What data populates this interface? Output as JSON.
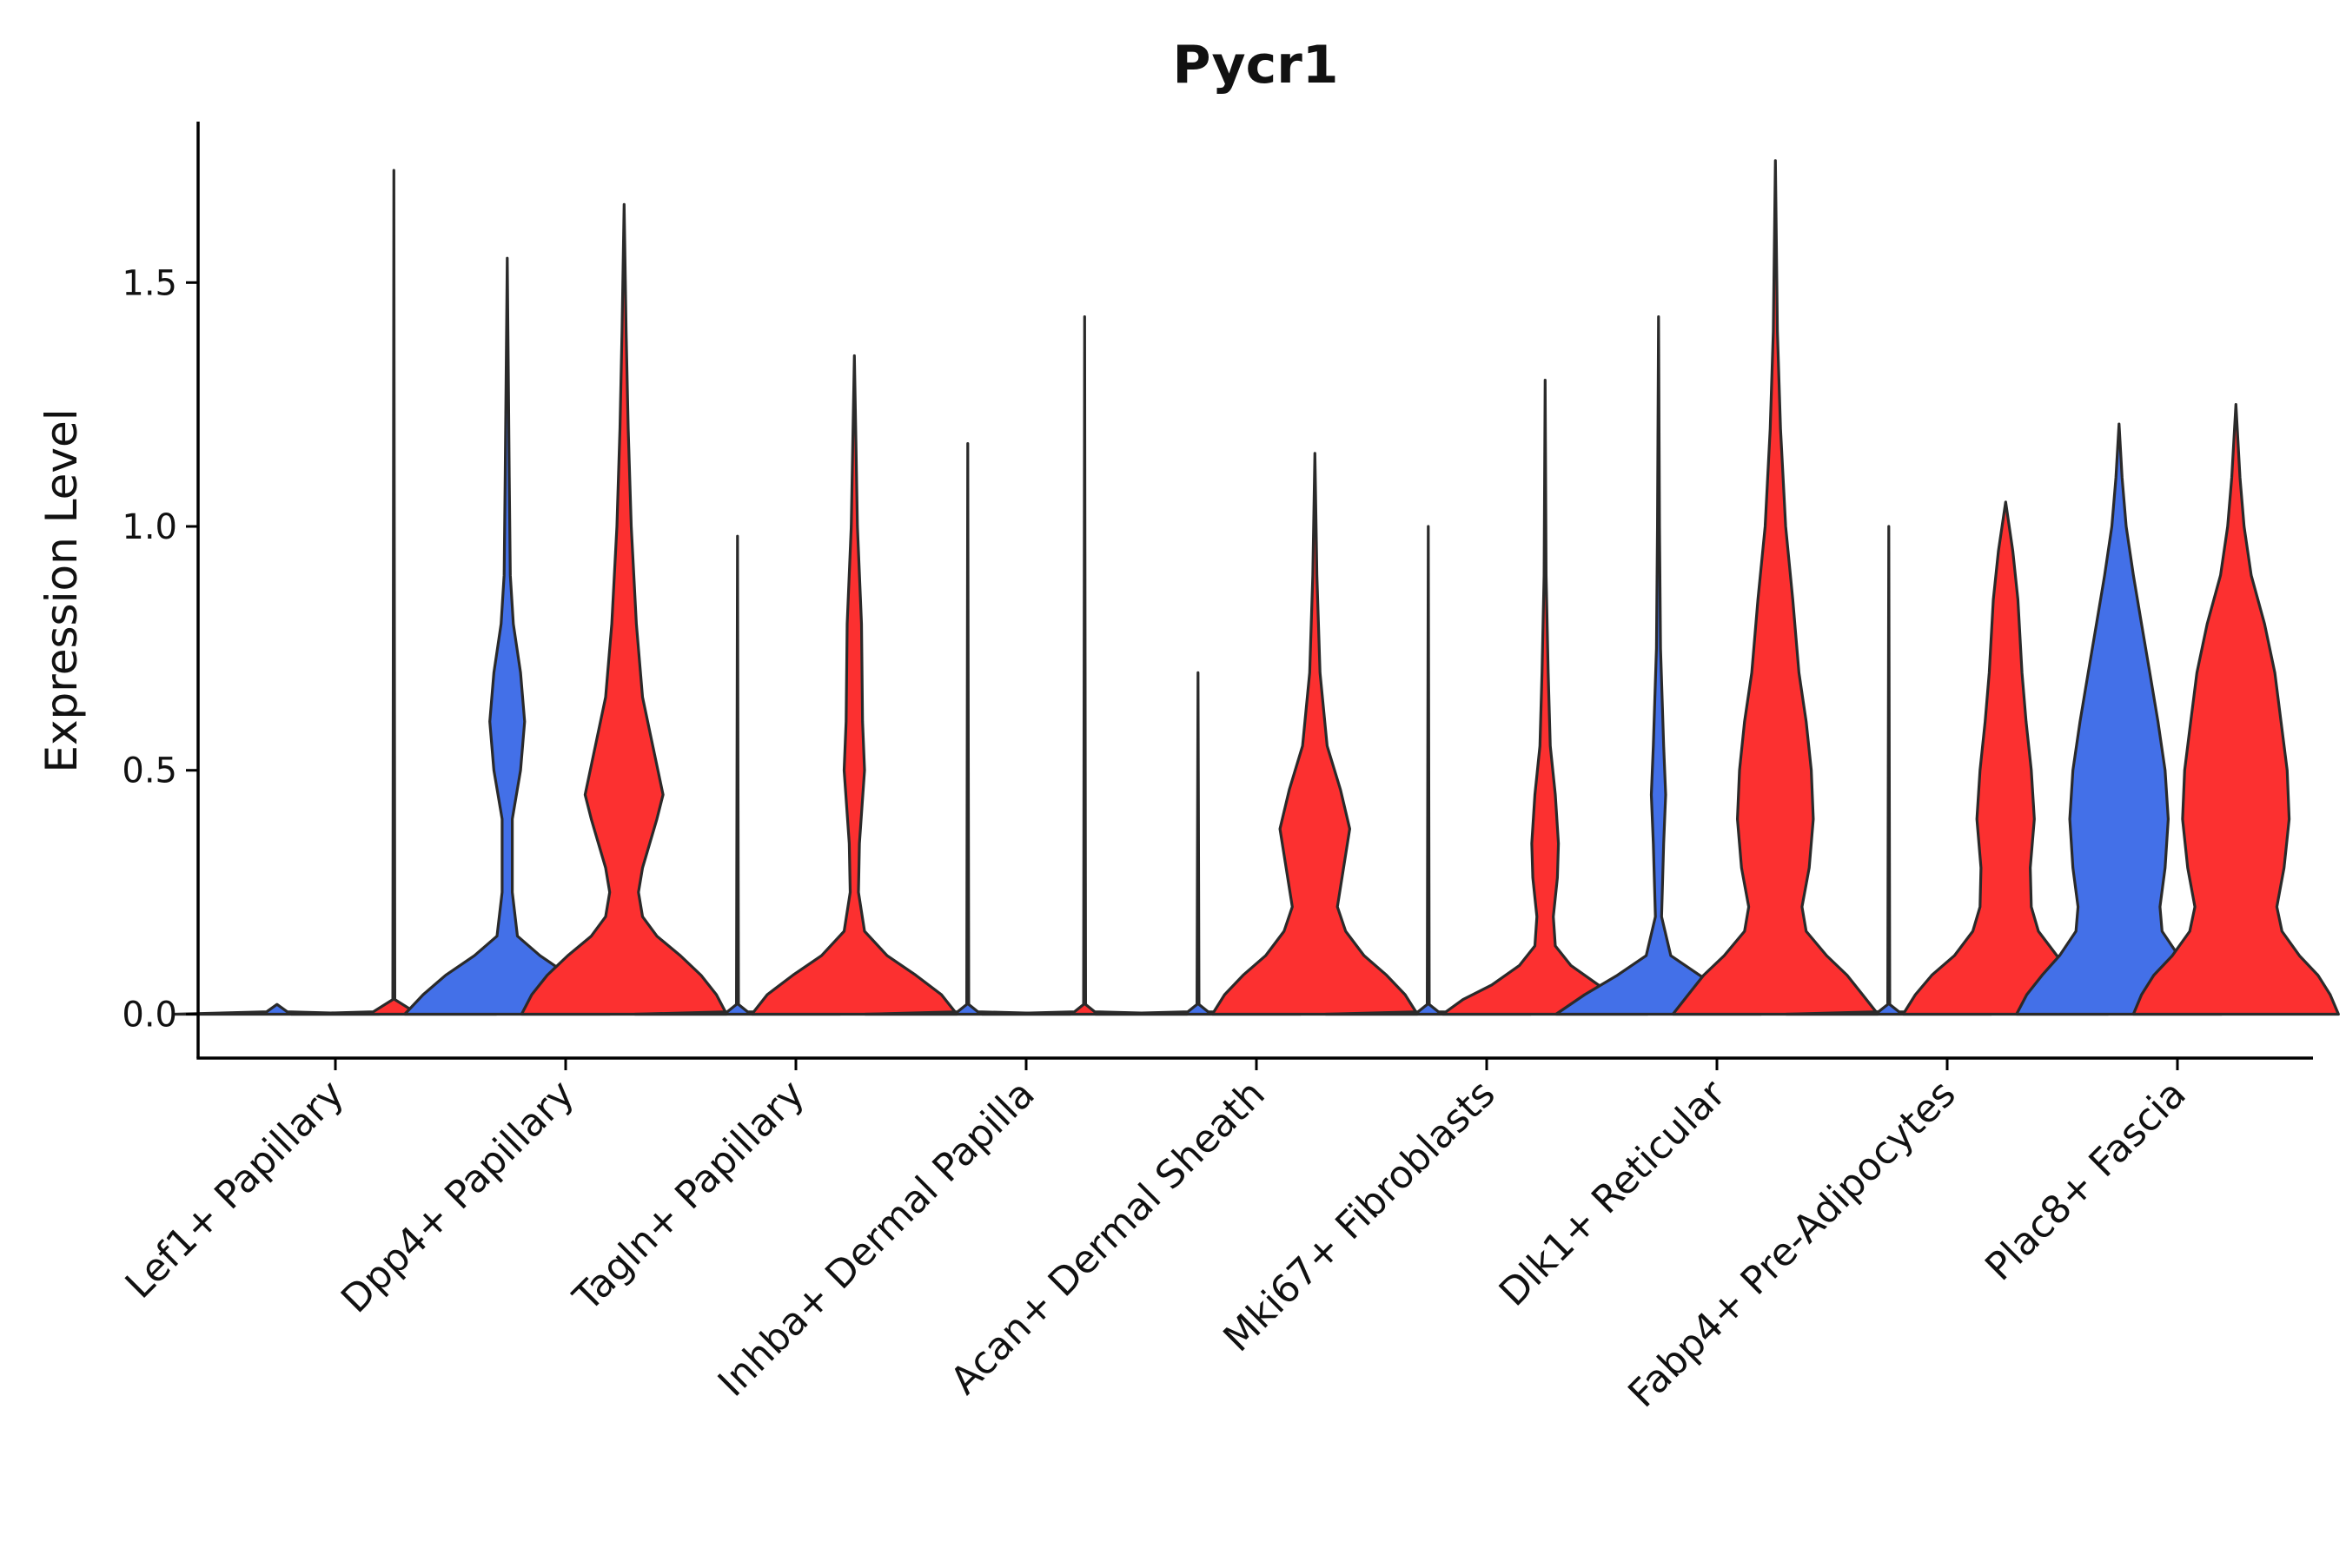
{
  "chart_data": {
    "type": "violin",
    "title": "Pycr1",
    "xlabel": "",
    "ylabel": "Expression Level",
    "ylim": [
      -0.09,
      1.83
    ],
    "yticks": [
      0.0,
      0.5,
      1.0,
      1.5
    ],
    "ytick_labels": [
      "0.0",
      "0.5",
      "1.0",
      "1.5"
    ],
    "grid": false,
    "legend": "none",
    "colors": {
      "blue": "#4370e8",
      "red": "#fc3030",
      "outline": "#2a2a2a"
    },
    "categories": [
      "Lef1+ Papillary",
      "Dpp4+ Papillary",
      "Tagln+ Papillary",
      "Inhba+ Dermal Papilla",
      "Acan+ Dermal Sheath",
      "Mki67+ Fibroblasts",
      "Dlk1+ Reticular",
      "Fabp4+ Pre-Adipocytes",
      "Plac8+ Fascia"
    ],
    "violins": [
      {
        "category": "Lef1+ Papillary",
        "group": "blue",
        "max": 0.0,
        "profile": [
          [
            0,
            1.0
          ],
          [
            0.005,
            0.1
          ],
          [
            0.02,
            0
          ]
        ]
      },
      {
        "category": "Lef1+ Papillary",
        "group": "red",
        "max": 1.73,
        "profile": [
          [
            0,
            1.0
          ],
          [
            0.005,
            0.2
          ],
          [
            0.03,
            0.01
          ],
          [
            1.73,
            0
          ]
        ]
      },
      {
        "category": "Dpp4+ Papillary",
        "group": "blue",
        "max": 1.55,
        "profile": [
          [
            0,
            1.0
          ],
          [
            0.04,
            0.82
          ],
          [
            0.08,
            0.6
          ],
          [
            0.12,
            0.32
          ],
          [
            0.16,
            0.1
          ],
          [
            0.25,
            0.05
          ],
          [
            0.4,
            0.05
          ],
          [
            0.5,
            0.13
          ],
          [
            0.6,
            0.17
          ],
          [
            0.7,
            0.13
          ],
          [
            0.8,
            0.06
          ],
          [
            0.9,
            0.03
          ],
          [
            1.1,
            0.02
          ],
          [
            1.55,
            0
          ]
        ]
      },
      {
        "category": "Dpp4+ Papillary",
        "group": "red",
        "max": 1.66,
        "profile": [
          [
            0,
            1.0
          ],
          [
            0.04,
            0.9
          ],
          [
            0.08,
            0.75
          ],
          [
            0.12,
            0.55
          ],
          [
            0.16,
            0.32
          ],
          [
            0.2,
            0.18
          ],
          [
            0.25,
            0.14
          ],
          [
            0.3,
            0.18
          ],
          [
            0.4,
            0.32
          ],
          [
            0.45,
            0.38
          ],
          [
            0.55,
            0.28
          ],
          [
            0.65,
            0.18
          ],
          [
            0.8,
            0.12
          ],
          [
            1.0,
            0.07
          ],
          [
            1.2,
            0.04
          ],
          [
            1.4,
            0.02
          ],
          [
            1.66,
            0
          ]
        ]
      },
      {
        "category": "Tagln+ Papillary",
        "group": "blue",
        "max": 0.98,
        "profile": [
          [
            0,
            1.0
          ],
          [
            0.005,
            0.1
          ],
          [
            0.02,
            0.01
          ],
          [
            0.98,
            0
          ]
        ]
      },
      {
        "category": "Tagln+ Papillary",
        "group": "red",
        "max": 1.35,
        "profile": [
          [
            0,
            1.0
          ],
          [
            0.04,
            0.85
          ],
          [
            0.08,
            0.6
          ],
          [
            0.12,
            0.32
          ],
          [
            0.17,
            0.1
          ],
          [
            0.25,
            0.04
          ],
          [
            0.35,
            0.05
          ],
          [
            0.5,
            0.1
          ],
          [
            0.6,
            0.08
          ],
          [
            0.8,
            0.07
          ],
          [
            1.0,
            0.03
          ],
          [
            1.35,
            0
          ]
        ]
      },
      {
        "category": "Inhba+ Dermal Papilla",
        "group": "blue",
        "max": 1.17,
        "profile": [
          [
            0,
            1.0
          ],
          [
            0.005,
            0.1
          ],
          [
            0.02,
            0.01
          ],
          [
            1.17,
            0
          ]
        ]
      },
      {
        "category": "Inhba+ Dermal Papilla",
        "group": "red",
        "max": 1.43,
        "profile": [
          [
            0,
            1.0
          ],
          [
            0.005,
            0.1
          ],
          [
            0.02,
            0.01
          ],
          [
            1.43,
            0
          ]
        ]
      },
      {
        "category": "Acan+ Dermal Sheath",
        "group": "blue",
        "max": 0.7,
        "profile": [
          [
            0,
            1.0
          ],
          [
            0.005,
            0.1
          ],
          [
            0.02,
            0.01
          ],
          [
            0.7,
            0
          ]
        ]
      },
      {
        "category": "Acan+ Dermal Sheath",
        "group": "red",
        "max": 1.15,
        "profile": [
          [
            0,
            1.0
          ],
          [
            0.04,
            0.88
          ],
          [
            0.08,
            0.7
          ],
          [
            0.12,
            0.48
          ],
          [
            0.17,
            0.3
          ],
          [
            0.22,
            0.22
          ],
          [
            0.3,
            0.28
          ],
          [
            0.38,
            0.34
          ],
          [
            0.46,
            0.25
          ],
          [
            0.55,
            0.12
          ],
          [
            0.7,
            0.05
          ],
          [
            0.9,
            0.02
          ],
          [
            1.15,
            0
          ]
        ]
      },
      {
        "category": "Mki67+ Fibroblasts",
        "group": "blue",
        "max": 1.0,
        "profile": [
          [
            0,
            1.0
          ],
          [
            0.005,
            0.1
          ],
          [
            0.02,
            0.01
          ],
          [
            1.0,
            0
          ]
        ]
      },
      {
        "category": "Mki67+ Fibroblasts",
        "group": "red",
        "max": 1.3,
        "profile": [
          [
            0,
            1.0
          ],
          [
            0.03,
            0.8
          ],
          [
            0.06,
            0.52
          ],
          [
            0.1,
            0.25
          ],
          [
            0.14,
            0.1
          ],
          [
            0.2,
            0.08
          ],
          [
            0.28,
            0.12
          ],
          [
            0.35,
            0.13
          ],
          [
            0.45,
            0.1
          ],
          [
            0.55,
            0.05
          ],
          [
            0.7,
            0.03
          ],
          [
            0.9,
            0.01
          ],
          [
            1.3,
            0
          ]
        ]
      },
      {
        "category": "Dlk1+ Reticular",
        "group": "blue",
        "max": 1.43,
        "profile": [
          [
            0,
            1.0
          ],
          [
            0.04,
            0.72
          ],
          [
            0.08,
            0.4
          ],
          [
            0.12,
            0.12
          ],
          [
            0.2,
            0.03
          ],
          [
            0.35,
            0.05
          ],
          [
            0.45,
            0.07
          ],
          [
            0.55,
            0.05
          ],
          [
            0.75,
            0.02
          ],
          [
            1.0,
            0.01
          ],
          [
            1.43,
            0
          ]
        ]
      },
      {
        "category": "Dlk1+ Reticular",
        "group": "red",
        "max": 1.75,
        "profile": [
          [
            0,
            1.0
          ],
          [
            0.04,
            0.85
          ],
          [
            0.08,
            0.7
          ],
          [
            0.12,
            0.5
          ],
          [
            0.17,
            0.3
          ],
          [
            0.22,
            0.26
          ],
          [
            0.3,
            0.33
          ],
          [
            0.4,
            0.37
          ],
          [
            0.5,
            0.35
          ],
          [
            0.6,
            0.3
          ],
          [
            0.7,
            0.23
          ],
          [
            0.85,
            0.17
          ],
          [
            1.0,
            0.1
          ],
          [
            1.2,
            0.05
          ],
          [
            1.4,
            0.02
          ],
          [
            1.75,
            0
          ]
        ]
      },
      {
        "category": "Fabp4+ Pre-Adipocytes",
        "group": "blue",
        "max": 1.0,
        "profile": [
          [
            0,
            1.0
          ],
          [
            0.005,
            0.1
          ],
          [
            0.02,
            0.01
          ],
          [
            1.0,
            0
          ]
        ]
      },
      {
        "category": "Fabp4+ Pre-Adipocytes",
        "group": "red",
        "max": 1.05,
        "profile": [
          [
            0,
            1.0
          ],
          [
            0.04,
            0.88
          ],
          [
            0.08,
            0.72
          ],
          [
            0.12,
            0.5
          ],
          [
            0.17,
            0.32
          ],
          [
            0.22,
            0.25
          ],
          [
            0.3,
            0.24
          ],
          [
            0.4,
            0.28
          ],
          [
            0.5,
            0.25
          ],
          [
            0.6,
            0.2
          ],
          [
            0.7,
            0.16
          ],
          [
            0.85,
            0.12
          ],
          [
            0.95,
            0.07
          ],
          [
            1.05,
            0
          ]
        ]
      },
      {
        "category": "Plac8+ Fascia",
        "group": "blue",
        "max": 1.21,
        "profile": [
          [
            0,
            1.0
          ],
          [
            0.04,
            0.9
          ],
          [
            0.08,
            0.75
          ],
          [
            0.12,
            0.58
          ],
          [
            0.17,
            0.42
          ],
          [
            0.22,
            0.4
          ],
          [
            0.3,
            0.45
          ],
          [
            0.4,
            0.48
          ],
          [
            0.5,
            0.45
          ],
          [
            0.6,
            0.38
          ],
          [
            0.7,
            0.3
          ],
          [
            0.8,
            0.22
          ],
          [
            0.9,
            0.14
          ],
          [
            1.0,
            0.07
          ],
          [
            1.1,
            0.03
          ],
          [
            1.21,
            0
          ]
        ]
      },
      {
        "category": "Plac8+ Fascia",
        "group": "red",
        "max": 1.25,
        "profile": [
          [
            0,
            1.0
          ],
          [
            0.04,
            0.92
          ],
          [
            0.08,
            0.8
          ],
          [
            0.12,
            0.62
          ],
          [
            0.17,
            0.45
          ],
          [
            0.22,
            0.4
          ],
          [
            0.3,
            0.47
          ],
          [
            0.4,
            0.52
          ],
          [
            0.5,
            0.5
          ],
          [
            0.6,
            0.44
          ],
          [
            0.7,
            0.38
          ],
          [
            0.8,
            0.28
          ],
          [
            0.9,
            0.15
          ],
          [
            1.0,
            0.08
          ],
          [
            1.1,
            0.04
          ],
          [
            1.25,
            0
          ]
        ]
      }
    ]
  }
}
